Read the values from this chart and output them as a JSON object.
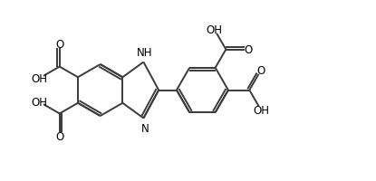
{
  "bg_color": "#ffffff",
  "line_color": "#3a3a3a",
  "text_color": "#000000",
  "line_width": 1.4,
  "font_size": 8.5,
  "fig_width": 4.15,
  "fig_height": 2.01,
  "dpi": 100,
  "xlim": [
    0,
    11.0
  ],
  "ylim": [
    0,
    5.5
  ]
}
